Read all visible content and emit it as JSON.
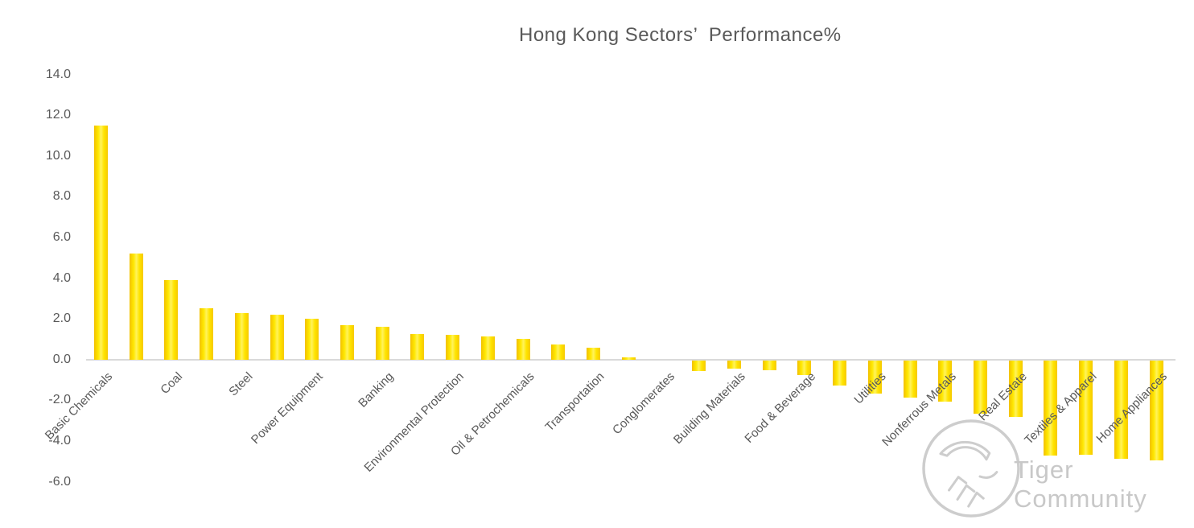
{
  "title": "Hong Kong Sectors’  Performance%",
  "watermark": {
    "text": "Tiger Community"
  },
  "chart_data": {
    "type": "bar",
    "title": "Hong Kong Sectors’  Performance%",
    "categories": [
      "Basic Chemicals",
      "",
      "Coal",
      "",
      "Steel",
      "",
      "Power Equipment",
      "",
      "Banking",
      "",
      "Environmental Protection",
      "",
      "Oil & Petrochemicals",
      "",
      "Transportation",
      "",
      "Conglomerates",
      "",
      "Building Materials",
      "",
      "Food & Beverage",
      "",
      "Utilities",
      "",
      "Nonferrous Metals",
      "",
      "Real Estate",
      "",
      "Textiles & Apparel",
      "",
      "Home Appliances"
    ],
    "values": [
      11.5,
      5.2,
      3.9,
      2.5,
      2.3,
      2.2,
      2.0,
      1.7,
      1.6,
      1.25,
      1.2,
      1.15,
      1.0,
      0.75,
      0.6,
      0.1,
      0.0,
      -0.5,
      -0.4,
      -0.45,
      -0.7,
      -1.2,
      -1.6,
      -1.8,
      -2.0,
      -2.6,
      -2.75,
      -4.65,
      -4.6,
      -4.8,
      -4.9
    ],
    "label_note": "only every second category shows a label on the axis",
    "yticks": [
      14.0,
      12.0,
      10.0,
      8.0,
      6.0,
      4.0,
      2.0,
      0.0,
      -2.0,
      -4.0,
      -6.0
    ],
    "ylim": [
      -7.2,
      14.8
    ],
    "xlabel": "",
    "ylabel": "",
    "grid": false,
    "legend_position": "none",
    "bar_color_edge": "#f2c000",
    "bar_color_center": "#fff35c",
    "axis_color": "#d9d9d9",
    "text_color": "#595959",
    "watermark_color": "#c8c8c8"
  }
}
